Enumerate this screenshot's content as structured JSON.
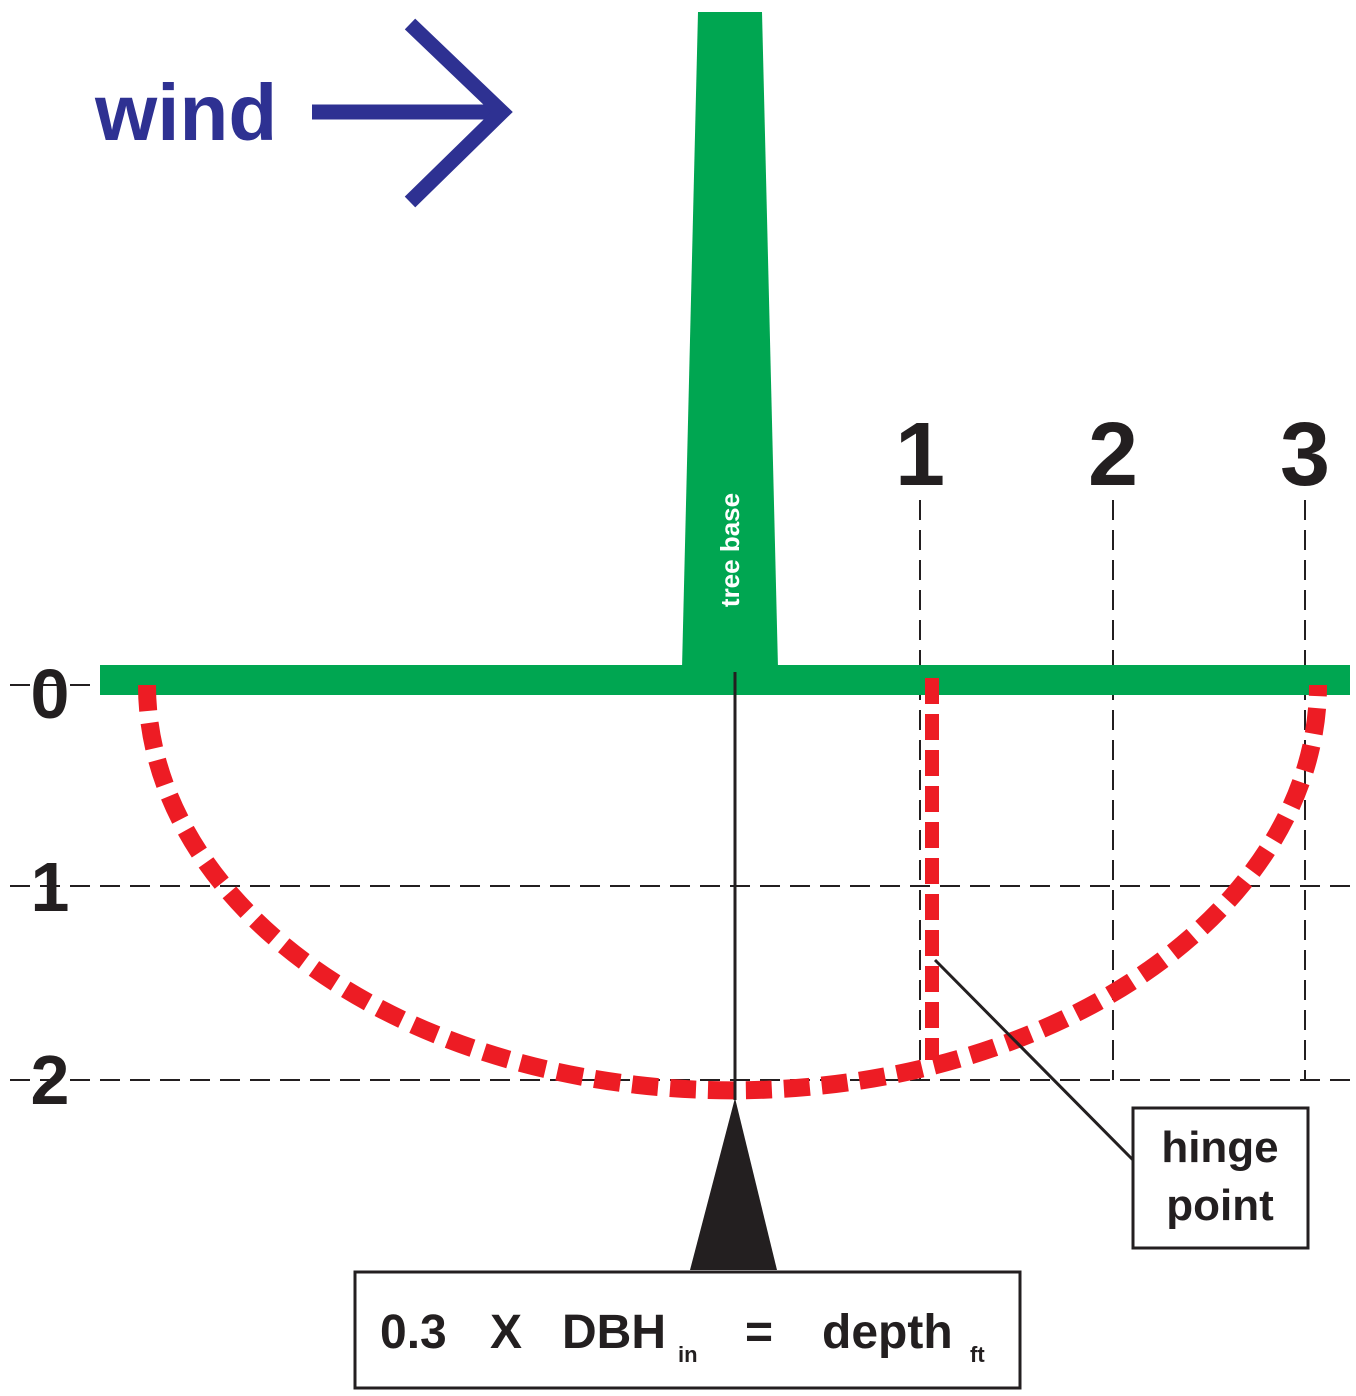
{
  "wind": "wind",
  "tree_label": "tree base",
  "columns": [
    "1",
    "2",
    "3"
  ],
  "rows": [
    "0",
    "1",
    "2"
  ],
  "hinge": [
    "hinge",
    "point"
  ],
  "formula": {
    "coefficient": "0.3",
    "times": "X",
    "variable": "DBH",
    "variable_unit": "in",
    "equals": "=",
    "result": "depth",
    "result_unit": "ft"
  }
}
